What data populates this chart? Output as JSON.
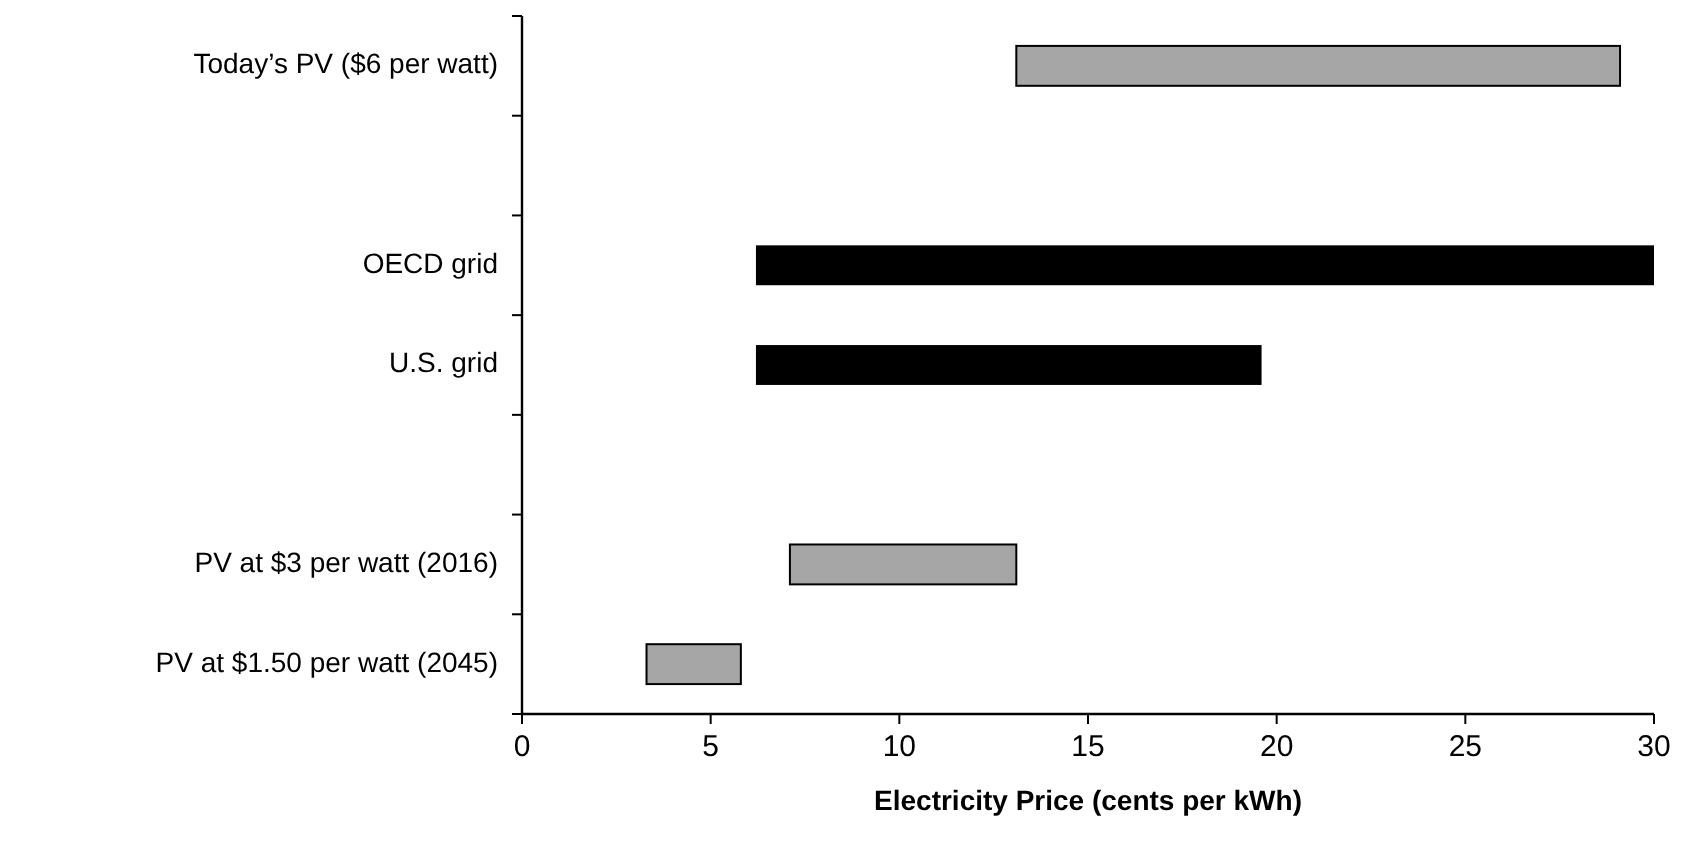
{
  "chart_data": {
    "type": "bar",
    "orientation": "horizontal",
    "xlabel": "Electricity Price (cents per kWh)",
    "categories": [
      "Today’s PV ($6 per watt)",
      null,
      "OECD grid",
      "U.S. grid",
      null,
      "PV at $3 per watt (2016)",
      "PV at $1.50 per watt (2045)"
    ],
    "base": [
      13.1,
      null,
      6.2,
      6.2,
      null,
      7.1,
      3.3
    ],
    "values": [
      16.0,
      null,
      23.8,
      13.4,
      null,
      6.0,
      2.5
    ],
    "colors": [
      "#a6a6a6",
      null,
      "#000000",
      "#000000",
      null,
      "#a6a6a6",
      "#a6a6a6"
    ],
    "xlim": [
      0,
      30
    ],
    "xticks": [
      0,
      5,
      10,
      15,
      20,
      25,
      30
    ],
    "grid": false
  }
}
